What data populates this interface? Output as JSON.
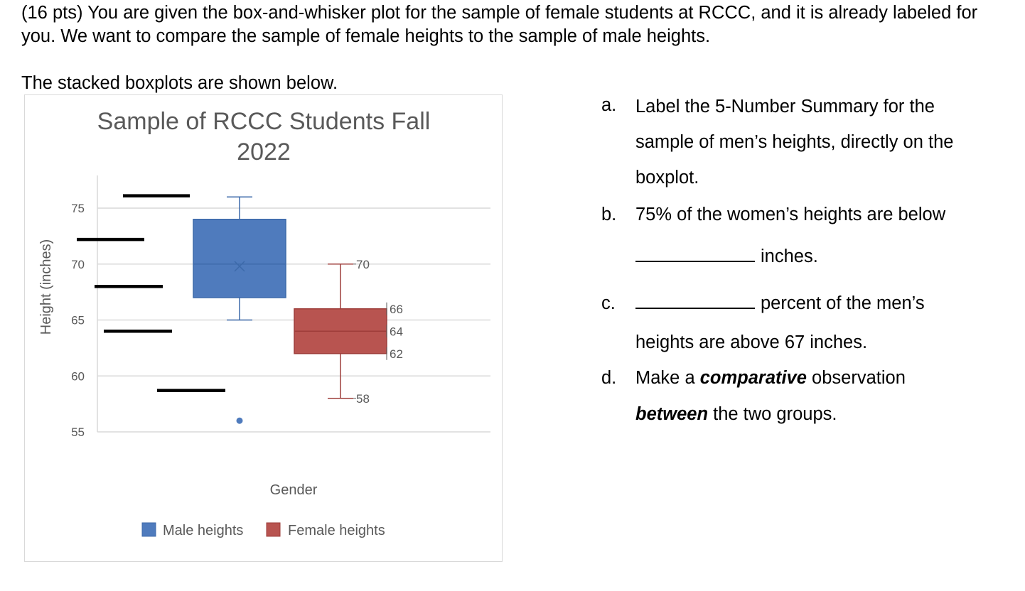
{
  "intro_text": "(16 pts) You are given the box-and-whisker plot for the sample of female students at RCCC, and it is already labeled for you. We want to compare the sample of female heights to the sample of male heights.",
  "stacked_text": "The stacked boxplots are shown below.",
  "questions": {
    "a": {
      "letter": "a.",
      "line1": "Label the 5-Number Summary for the",
      "line2": "sample of men’s heights, directly on the",
      "line3": "boxplot."
    },
    "b": {
      "letter": "b.",
      "line1": "75% of the women’s heights are below",
      "line2_after_blank": "inches."
    },
    "c": {
      "letter": "c.",
      "line1_after_blank": "percent of the men’s",
      "line2": "heights are above 67 inches."
    },
    "d": {
      "letter": "d.",
      "line1_pre": "Make a ",
      "line1_emph": "comparative",
      "line1_post": " observation",
      "line2_emph": "between",
      "line2_post": " the two groups."
    }
  },
  "colors": {
    "male": "#4f7bbd",
    "male_edge": "#3d6aaa",
    "female": "#b85450",
    "female_edge": "#9e3d3a",
    "grid": "#d9d9d9",
    "text": "#595959"
  },
  "chart_data": {
    "type": "boxplot",
    "title_line1": "Sample of RCCC Students Fall",
    "title_line2": "2022",
    "xlabel": "Gender",
    "ylabel": "Height (inches)",
    "ylim": [
      55,
      78
    ],
    "yticks": [
      55,
      60,
      65,
      70,
      75
    ],
    "legend_position": "bottom",
    "series": [
      {
        "name": "Male heights",
        "min": 65,
        "q1": 67,
        "median": 70,
        "q3": 74,
        "max": 76,
        "mean": 69.8,
        "outliers": [
          56
        ]
      },
      {
        "name": "Female heights",
        "min": 58,
        "q1": 62,
        "median": 64,
        "q3": 66,
        "max": 70,
        "labels": [
          "70",
          "66",
          "64",
          "62",
          "58"
        ]
      }
    ],
    "answer_marks": [
      76.1,
      72.2,
      68,
      64,
      58.7
    ]
  }
}
